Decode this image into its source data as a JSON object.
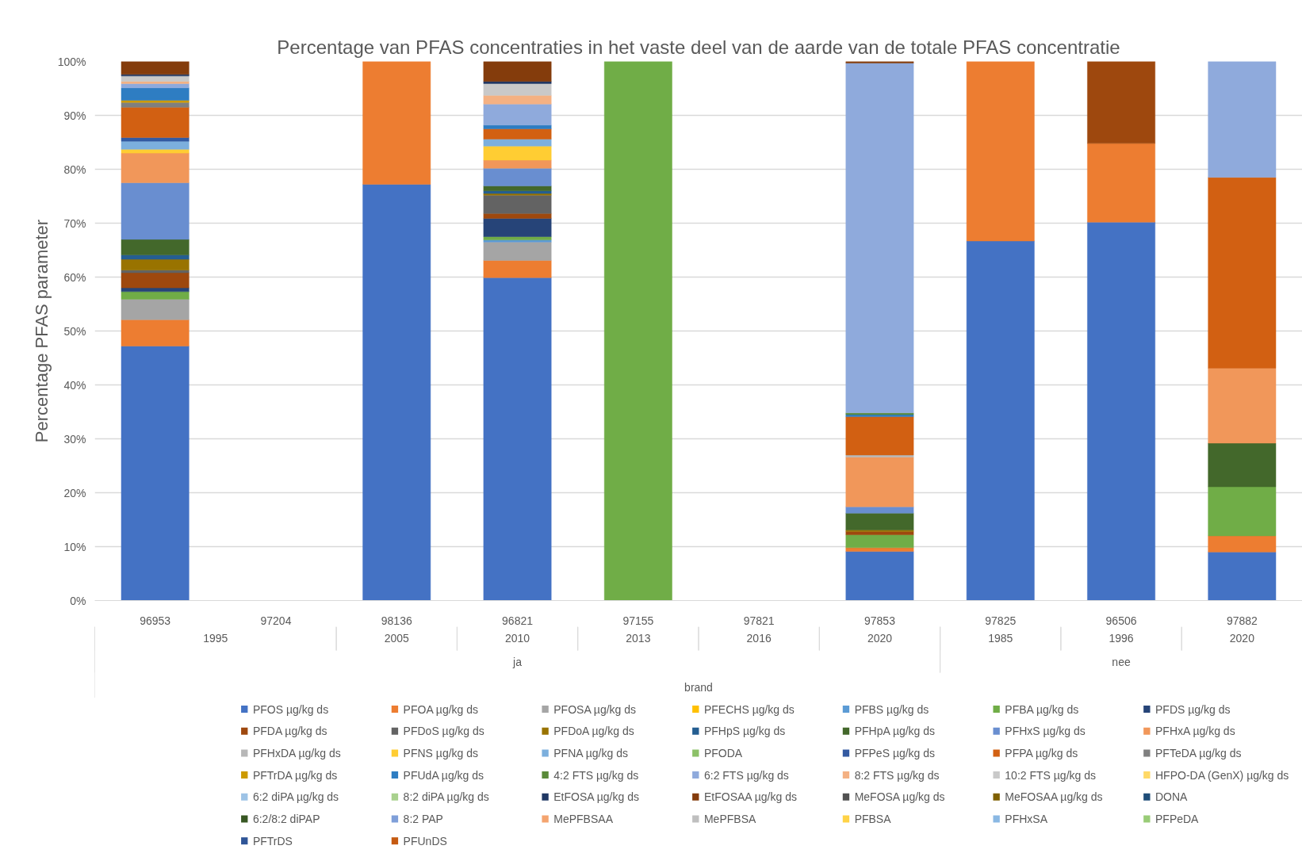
{
  "chart_data": {
    "type": "bar",
    "stacked": true,
    "title": "Percentage van PFAS concentraties in het vaste deel van de aarde van de totale PFAS concentratie",
    "xlabel": "brand",
    "ylabel": "Percentage PFAS parameter",
    "categories": [
      "96953",
      "97204",
      "98136",
      "96821",
      "97155",
      "97821",
      "97853",
      "97825",
      "96506",
      "97882"
    ],
    "ylim": [
      0,
      100
    ],
    "yticks": [
      {
        "value": 0,
        "label": "0%"
      },
      {
        "value": 10,
        "label": "10%"
      },
      {
        "value": 20,
        "label": "20%"
      },
      {
        "value": 30,
        "label": "30%"
      },
      {
        "value": 40,
        "label": "40%"
      },
      {
        "value": 50,
        "label": "50%"
      },
      {
        "value": 60,
        "label": "60%"
      },
      {
        "value": 70,
        "label": "70%"
      },
      {
        "value": 80,
        "label": "80%"
      },
      {
        "value": 90,
        "label": "90%"
      },
      {
        "value": 100,
        "label": "100%"
      }
    ],
    "grid": "y",
    "legend": "bottom",
    "annotations": [
      "1995",
      "2005",
      "2010",
      "2013",
      "2016",
      "2020",
      "1985",
      "1996",
      "2020",
      "ja",
      "nee"
    ],
    "series": [
      {
        "name": "PFOS  µg/kg ds",
        "color": "#4472c4",
        "values": [
          47.2,
          null,
          77.2,
          59.9,
          null,
          null,
          9.1,
          66.7,
          70.2,
          9.0
        ]
      },
      {
        "name": "PFOA µg/kg ds",
        "color": "#ed7d31",
        "values": [
          4.9,
          null,
          22.8,
          3.2,
          null,
          null,
          0.7,
          33.3,
          14.6,
          3.0
        ]
      },
      {
        "name": "PFOSA µg/kg ds",
        "color": "#a5a5a5",
        "values": [
          3.8,
          null,
          null,
          3.4,
          null,
          null,
          null,
          null,
          null,
          null
        ]
      },
      {
        "name": "PFECHS µg/kg ds",
        "color": "#ffc000",
        "values": [
          null,
          null,
          null,
          null,
          null,
          null,
          null,
          null,
          null,
          null
        ]
      },
      {
        "name": "PFBS µg/kg ds",
        "color": "#5b9bd5",
        "values": [
          null,
          null,
          null,
          0.4,
          null,
          null,
          null,
          null,
          null,
          null
        ]
      },
      {
        "name": "PFBA µg/kg ds",
        "color": "#70ad47",
        "values": [
          1.4,
          null,
          null,
          0.6,
          100,
          null,
          2.4,
          null,
          null,
          9.1
        ]
      },
      {
        "name": "PFDS µg/kg ds",
        "color": "#264478",
        "values": [
          0.7,
          null,
          null,
          3.4,
          null,
          null,
          null,
          null,
          null,
          null
        ]
      },
      {
        "name": "PFDA µg/kg ds",
        "color": "#9e480e",
        "values": [
          2.8,
          null,
          null,
          0.9,
          null,
          null,
          0.6,
          null,
          15.2,
          null
        ]
      },
      {
        "name": "PFDoS µg/kg ds",
        "color": "#636363",
        "values": [
          0.5,
          null,
          null,
          3.4,
          null,
          null,
          null,
          null,
          null,
          null
        ]
      },
      {
        "name": "PFDoA µg/kg ds",
        "color": "#997300",
        "values": [
          2.0,
          null,
          null,
          0.3,
          null,
          null,
          0.3,
          null,
          null,
          null
        ]
      },
      {
        "name": "PFHpS µg/kg ds",
        "color": "#255e91",
        "values": [
          0.8,
          null,
          null,
          0.5,
          null,
          null,
          null,
          null,
          null,
          null
        ]
      },
      {
        "name": "PFHpA µg/kg ds",
        "color": "#43682b",
        "values": [
          2.9,
          null,
          null,
          0.9,
          null,
          null,
          3.1,
          null,
          null,
          8.1
        ]
      },
      {
        "name": "PFHxS µg/kg ds",
        "color": "#698ed0",
        "values": [
          10.5,
          null,
          null,
          3.3,
          null,
          null,
          1.2,
          null,
          null,
          null
        ]
      },
      {
        "name": "PFHxA µg/kg ds",
        "color": "#f1975a",
        "values": [
          5.5,
          null,
          null,
          1.5,
          null,
          null,
          9.2,
          null,
          null,
          13.9
        ]
      },
      {
        "name": "PFHxDA µg/kg ds",
        "color": "#b7b7b7",
        "values": [
          null,
          null,
          null,
          null,
          null,
          null,
          0.4,
          null,
          null,
          null
        ]
      },
      {
        "name": "PFNS µg/kg ds",
        "color": "#ffcd33",
        "values": [
          0.7,
          null,
          null,
          2.6,
          null,
          null,
          null,
          null,
          null,
          null
        ]
      },
      {
        "name": "PFNA µg/kg ds",
        "color": "#7cafdd",
        "values": [
          1.5,
          null,
          null,
          1.3,
          null,
          null,
          null,
          null,
          null,
          null
        ]
      },
      {
        "name": "PFODA",
        "color": "#8cc168",
        "values": [
          null,
          null,
          null,
          null,
          null,
          null,
          null,
          null,
          null,
          null
        ]
      },
      {
        "name": "PFPeS µg/kg ds",
        "color": "#335aa1",
        "values": [
          0.7,
          null,
          null,
          null,
          null,
          null,
          null,
          null,
          null,
          null
        ]
      },
      {
        "name": "PFPA µg/kg ds",
        "color": "#d26012",
        "values": [
          5.6,
          null,
          null,
          1.9,
          null,
          null,
          7.1,
          null,
          null,
          35.4
        ]
      },
      {
        "name": "PFTeDA µg/kg ds",
        "color": "#7f7f7f",
        "values": [
          0.9,
          null,
          null,
          null,
          null,
          null,
          null,
          null,
          null,
          null
        ]
      },
      {
        "name": "PFTrDA µg/kg ds",
        "color": "#cc9a00",
        "values": [
          0.4,
          null,
          null,
          null,
          null,
          null,
          null,
          null,
          null,
          null
        ]
      },
      {
        "name": "PFUdA µg/kg ds",
        "color": "#2e7dc2",
        "values": [
          2.3,
          null,
          null,
          0.7,
          null,
          null,
          0.4,
          null,
          null,
          null
        ]
      },
      {
        "name": "4:2 FTS µg/kg ds",
        "color": "#5a8a39",
        "values": [
          null,
          null,
          null,
          null,
          null,
          null,
          0.3,
          null,
          null,
          null
        ]
      },
      {
        "name": "6:2 FTS µg/kg ds",
        "color": "#8faadc",
        "values": [
          0.8,
          null,
          null,
          3.9,
          null,
          null,
          64.9,
          null,
          null,
          21.5
        ]
      },
      {
        "name": "8:2 FTS µg/kg ds",
        "color": "#f4b183",
        "values": [
          0.4,
          null,
          null,
          1.6,
          null,
          null,
          null,
          null,
          null,
          null
        ]
      },
      {
        "name": "10:2 FTS µg/kg ds",
        "color": "#c9c9c9",
        "values": [
          1.0,
          null,
          null,
          2.2,
          null,
          null,
          null,
          null,
          null,
          null
        ]
      },
      {
        "name": "HFPO-DA (GenX) µg/kg ds",
        "color": "#ffd966",
        "values": [
          null,
          null,
          null,
          null,
          null,
          null,
          null,
          null,
          null,
          null
        ]
      },
      {
        "name": "6:2 diPA µg/kg ds",
        "color": "#9dc3e6",
        "values": [
          null,
          null,
          null,
          null,
          null,
          null,
          null,
          null,
          null,
          null
        ]
      },
      {
        "name": "8:2 diPA µg/kg ds",
        "color": "#a9d18e",
        "values": [
          null,
          null,
          null,
          null,
          null,
          null,
          null,
          null,
          null,
          null
        ]
      },
      {
        "name": "EtFOSA µg/kg ds",
        "color": "#203864",
        "values": [
          0.3,
          null,
          null,
          0.4,
          null,
          null,
          null,
          null,
          null,
          null
        ]
      },
      {
        "name": "EtFOSAA µg/kg ds",
        "color": "#843c0c",
        "values": [
          2.4,
          null,
          null,
          3.7,
          null,
          null,
          0.4,
          null,
          null,
          null
        ]
      },
      {
        "name": "MeFOSA µg/kg ds",
        "color": "#525252",
        "values": [
          null,
          null,
          null,
          null,
          null,
          null,
          null,
          null,
          null,
          null
        ]
      },
      {
        "name": "MeFOSAA µg/kg ds",
        "color": "#7f6000",
        "values": [
          null,
          null,
          null,
          null,
          null,
          null,
          null,
          null,
          null,
          null
        ]
      },
      {
        "name": "DONA",
        "color": "#1f4e79",
        "values": [
          null,
          null,
          null,
          null,
          null,
          null,
          null,
          null,
          null,
          null
        ]
      },
      {
        "name": "6:2/8:2 diPAP",
        "color": "#385723",
        "values": [
          null,
          null,
          null,
          null,
          null,
          null,
          null,
          null,
          null,
          null
        ]
      },
      {
        "name": "8:2 PAP",
        "color": "#7f9fd9",
        "values": [
          null,
          null,
          null,
          null,
          null,
          null,
          null,
          null,
          null,
          null
        ]
      },
      {
        "name": "MePFBSAA",
        "color": "#f4a46f",
        "values": [
          null,
          null,
          null,
          null,
          null,
          null,
          null,
          null,
          null,
          null
        ]
      },
      {
        "name": "MePFBSA",
        "color": "#bfbfbf",
        "values": [
          null,
          null,
          null,
          null,
          null,
          null,
          null,
          null,
          null,
          null
        ]
      },
      {
        "name": "PFBSA",
        "color": "#ffd347",
        "values": [
          null,
          null,
          null,
          null,
          null,
          null,
          null,
          null,
          null,
          null
        ]
      },
      {
        "name": "PFHxSA",
        "color": "#8ab8e3",
        "values": [
          null,
          null,
          null,
          null,
          null,
          null,
          null,
          null,
          null,
          null
        ]
      },
      {
        "name": "PFPeDA",
        "color": "#99cc77",
        "values": [
          null,
          null,
          null,
          null,
          null,
          null,
          null,
          null,
          null,
          null
        ]
      },
      {
        "name": "PFTrDS",
        "color": "#2f5597",
        "values": [
          null,
          null,
          null,
          null,
          null,
          null,
          null,
          null,
          null,
          null
        ]
      },
      {
        "name": "PFUnDS",
        "color": "#c55a11",
        "values": [
          null,
          null,
          null,
          null,
          null,
          null,
          null,
          null,
          null,
          null
        ]
      }
    ]
  }
}
